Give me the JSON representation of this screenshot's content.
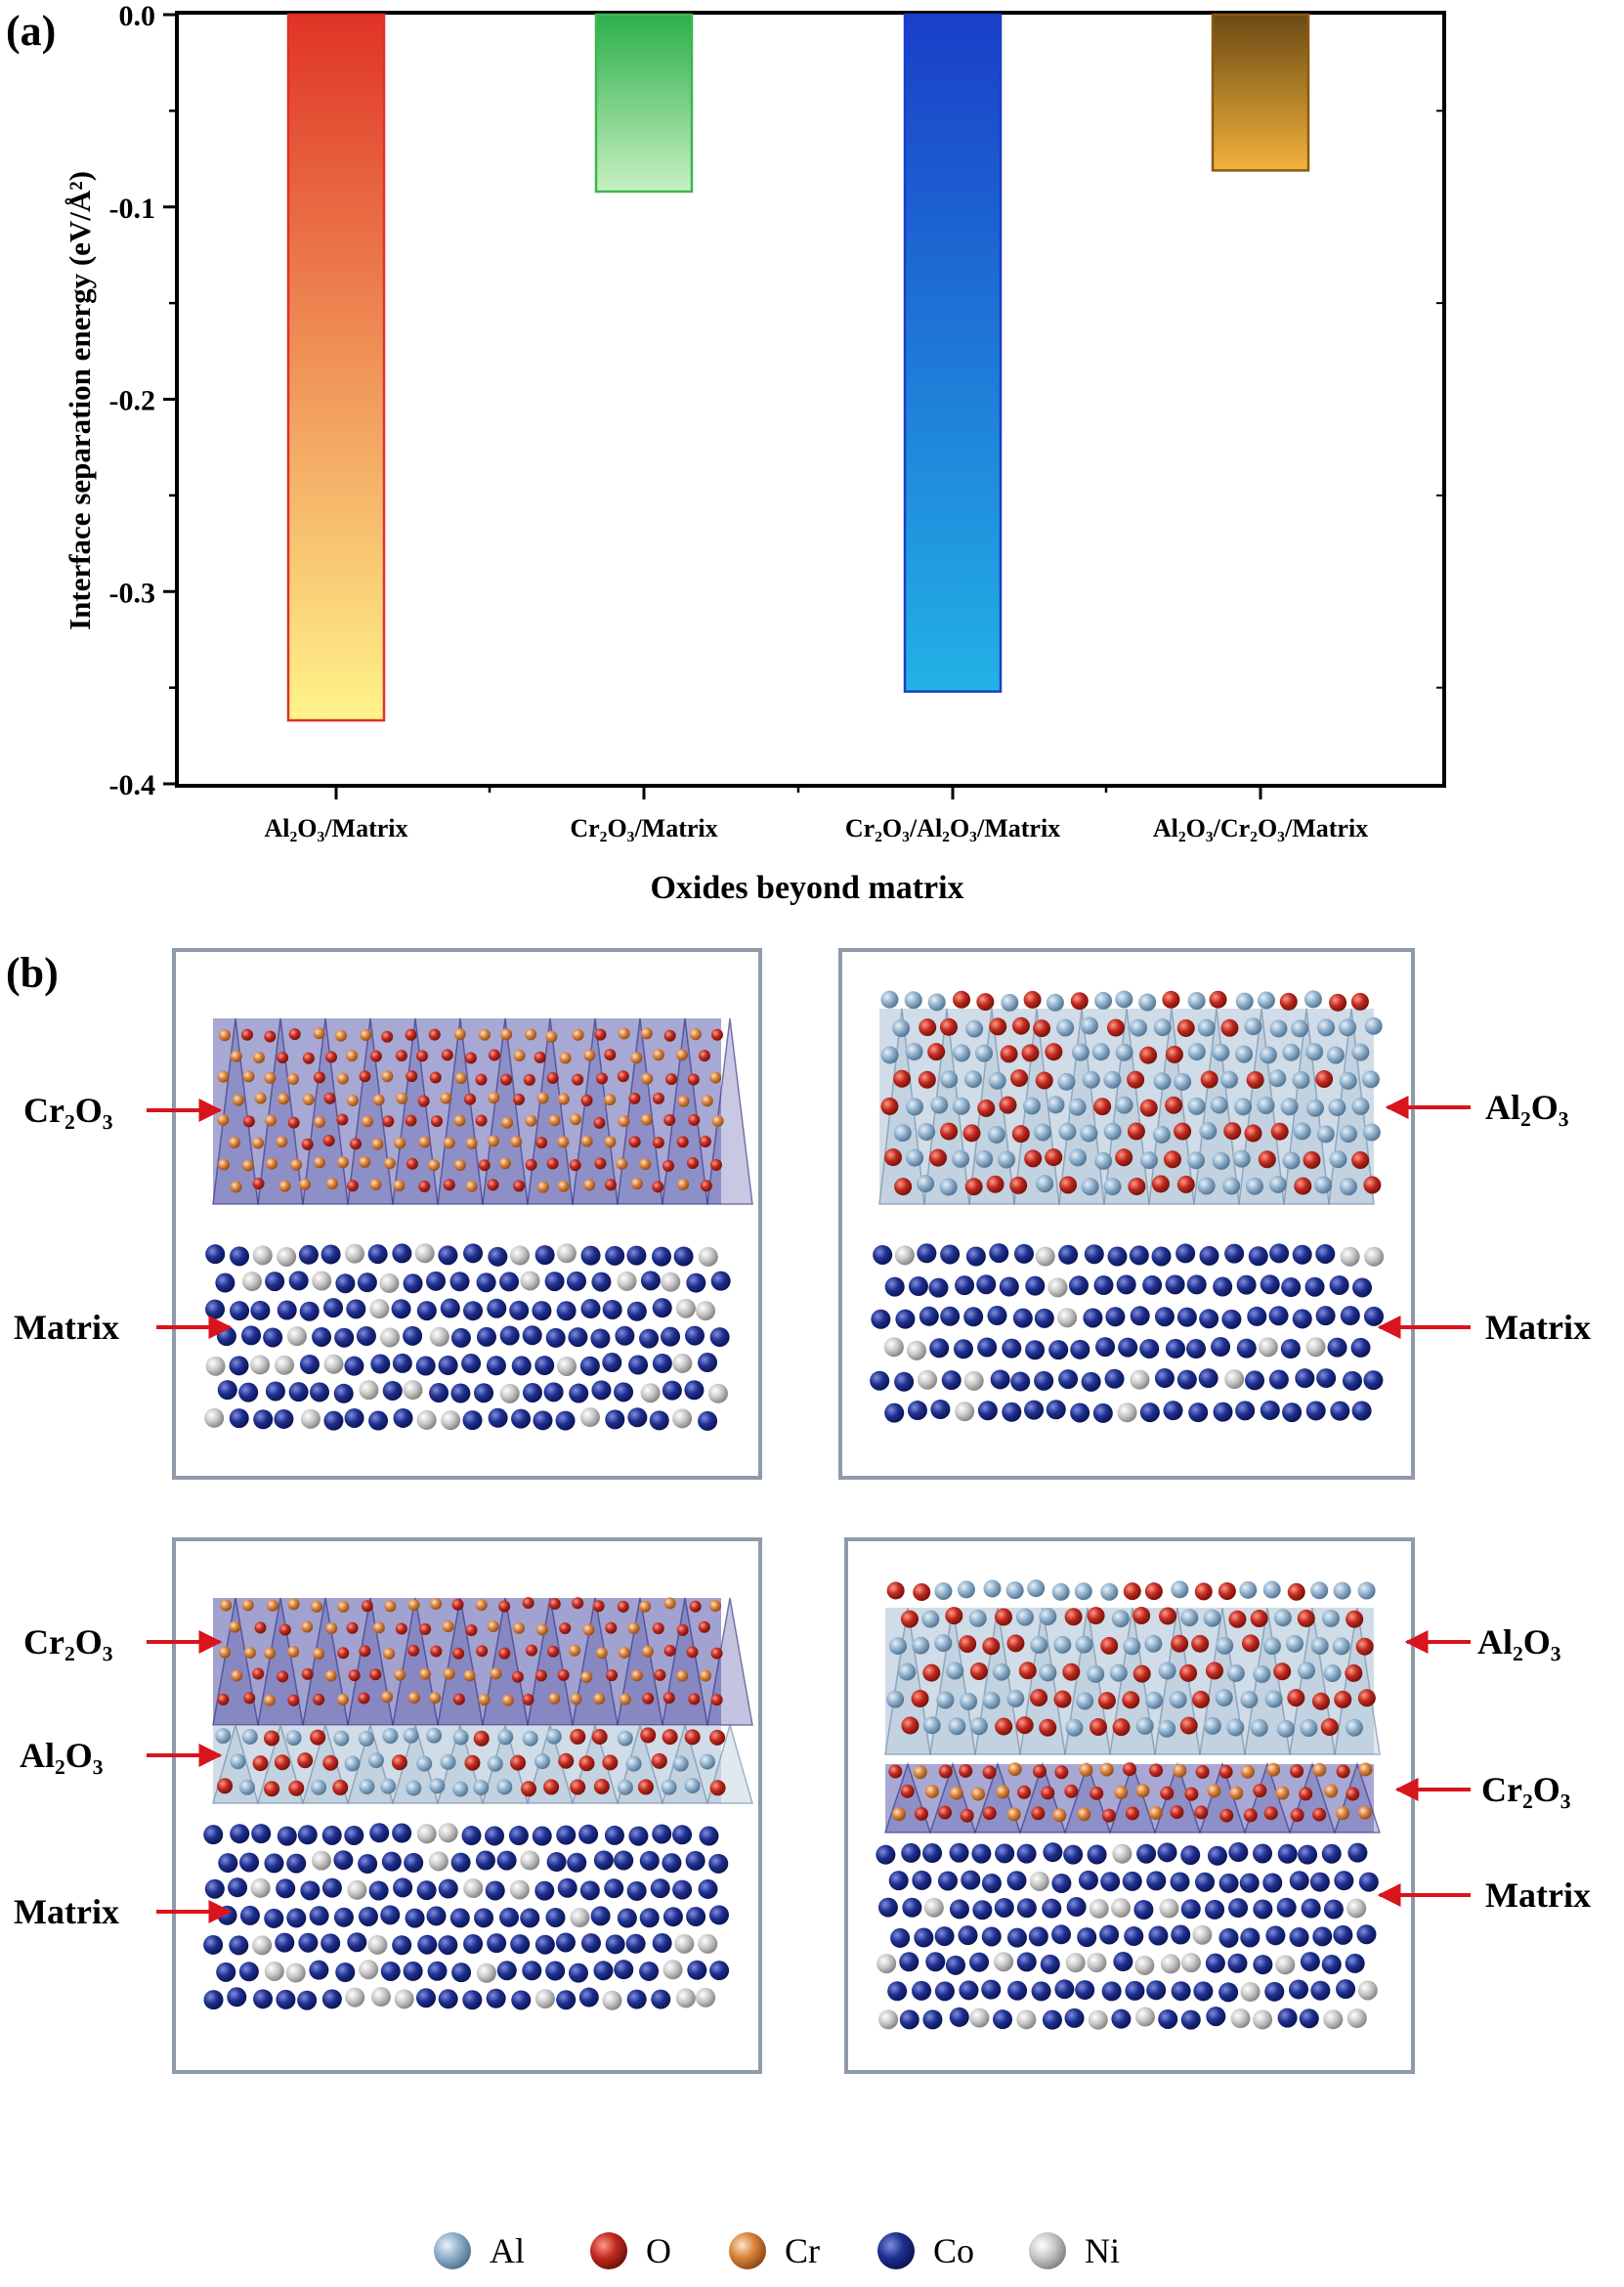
{
  "panel_a": {
    "label": "(a)",
    "ylabel": "Interface separation energy (eV/Å²)",
    "xlabel": "Oxides beyond matrix"
  },
  "chart_data": {
    "type": "bar",
    "categories": [
      "Al₂O₃/Matrix",
      "Cr₂O₃/Matrix",
      "Cr₂O₃/Al₂O₃/Matrix",
      "Al₂O₃/Cr₂O₃/Matrix"
    ],
    "values": [
      -0.367,
      -0.092,
      -0.352,
      -0.081
    ],
    "ylim": [
      -0.4,
      0.0
    ],
    "yticks": [
      "0.0",
      "-0.1",
      "-0.2",
      "-0.3",
      "-0.4"
    ],
    "ytick_values": [
      0.0,
      -0.1,
      -0.2,
      -0.3,
      -0.4
    ],
    "title": "",
    "xlabel": "Oxides beyond matrix",
    "ylabel": "Interface separation energy (eV/Å²)",
    "grid": false,
    "colors": {
      "bar1": {
        "top": "#e03426",
        "bottom": "#fff48a",
        "edge": "#e0302a"
      },
      "bar2": {
        "top": "#2bb04a",
        "bottom": "#c8f0c2",
        "edge": "#3db552"
      },
      "bar3": {
        "top": "#1a3fc8",
        "bottom": "#22b2e6",
        "edge": "#1a3fc8"
      },
      "bar4": {
        "top": "#6b4a14",
        "bottom": "#f2b23c",
        "edge": "#8a5a14"
      }
    }
  },
  "panel_b": {
    "label": "(b)",
    "structures": [
      {
        "labels": [
          "Cr₂O₃",
          "Matrix"
        ],
        "side": "left"
      },
      {
        "labels": [
          "Al₂O₃",
          "Matrix"
        ],
        "side": "right"
      },
      {
        "labels": [
          "Cr₂O₃",
          "Al₂O₃",
          "Matrix"
        ],
        "side": "left"
      },
      {
        "labels": [
          "Al₂O₃",
          "Cr₂O₃",
          "Matrix"
        ],
        "side": "right"
      }
    ]
  },
  "legend": [
    {
      "name": "Al",
      "color": "#7fa3c0"
    },
    {
      "name": "O",
      "color": "#c0291f"
    },
    {
      "name": "Cr",
      "color": "#d8823c"
    },
    {
      "name": "Co",
      "color": "#1e2f8f"
    },
    {
      "name": "Ni",
      "color": "#c8c8c8"
    }
  ]
}
